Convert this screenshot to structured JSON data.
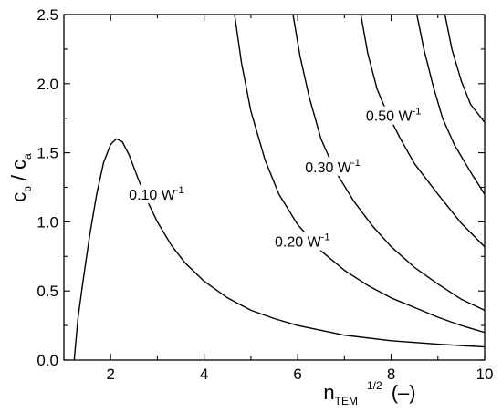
{
  "chart_data": {
    "type": "line",
    "title": "",
    "xlabel": {
      "main": "n",
      "sub": "TEM",
      "sup": "1/2",
      "tail": "(–)"
    },
    "ylabel": {
      "c1": "c",
      "c1sub": "b",
      "slash": "/",
      "c2": "c",
      "c2sub": "a"
    },
    "xlim": [
      1,
      10
    ],
    "ylim": [
      0,
      2.5
    ],
    "xticks": [
      2,
      4,
      6,
      8,
      10
    ],
    "yticks": [
      0.0,
      0.5,
      1.0,
      1.5,
      2.0,
      2.5
    ],
    "ytick_labels": [
      "0.0",
      "0.5",
      "1.0",
      "1.5",
      "2.0",
      "2.5"
    ],
    "grid": false,
    "series": [
      {
        "name": "0.10 W-1",
        "label_text": "0.10 W",
        "label_sup": "-1",
        "label_at": [
          2.98,
          1.18
        ],
        "points": [
          [
            1.22,
            0.0
          ],
          [
            1.3,
            0.3
          ],
          [
            1.4,
            0.55
          ],
          [
            1.55,
            0.9
          ],
          [
            1.7,
            1.2
          ],
          [
            1.85,
            1.43
          ],
          [
            2.0,
            1.56
          ],
          [
            2.12,
            1.6
          ],
          [
            2.25,
            1.58
          ],
          [
            2.4,
            1.48
          ],
          [
            2.6,
            1.3
          ],
          [
            2.8,
            1.14
          ],
          [
            3.0,
            1.0
          ],
          [
            3.3,
            0.83
          ],
          [
            3.6,
            0.7
          ],
          [
            4.0,
            0.57
          ],
          [
            4.5,
            0.45
          ],
          [
            5.0,
            0.36
          ],
          [
            5.5,
            0.3
          ],
          [
            6.0,
            0.25
          ],
          [
            7.0,
            0.18
          ],
          [
            8.0,
            0.14
          ],
          [
            9.0,
            0.115
          ],
          [
            10.0,
            0.095
          ]
        ]
      },
      {
        "name": "0.20 W-1",
        "label_text": "0.20 W",
        "label_sup": "-1",
        "label_at": [
          6.1,
          0.84
        ],
        "points": [
          [
            4.65,
            2.5
          ],
          [
            4.8,
            2.15
          ],
          [
            5.0,
            1.8
          ],
          [
            5.3,
            1.45
          ],
          [
            5.6,
            1.2
          ],
          [
            6.0,
            0.98
          ],
          [
            6.5,
            0.79
          ],
          [
            7.0,
            0.65
          ],
          [
            7.5,
            0.54
          ],
          [
            8.0,
            0.45
          ],
          [
            8.5,
            0.38
          ],
          [
            9.0,
            0.31
          ],
          [
            9.5,
            0.25
          ],
          [
            10.0,
            0.2
          ]
        ]
      },
      {
        "name": "0.30 W-1",
        "label_text": "0.30 W",
        "label_sup": "-1",
        "label_at": [
          6.75,
          1.38
        ],
        "points": [
          [
            5.9,
            2.5
          ],
          [
            6.05,
            2.2
          ],
          [
            6.25,
            1.9
          ],
          [
            6.5,
            1.6
          ],
          [
            6.8,
            1.37
          ],
          [
            7.2,
            1.15
          ],
          [
            7.6,
            0.97
          ],
          [
            8.0,
            0.82
          ],
          [
            8.5,
            0.67
          ],
          [
            9.0,
            0.55
          ],
          [
            9.5,
            0.44
          ],
          [
            10.0,
            0.36
          ]
        ]
      },
      {
        "name": "0.50 W-1",
        "label_text": "0.50 W",
        "label_sup": "-1",
        "label_at": [
          8.05,
          1.75
        ],
        "points": [
          [
            7.35,
            2.5
          ],
          [
            7.5,
            2.22
          ],
          [
            7.7,
            1.96
          ],
          [
            7.9,
            1.8
          ],
          [
            8.2,
            1.6
          ],
          [
            8.5,
            1.42
          ],
          [
            9.0,
            1.2
          ],
          [
            9.5,
            0.99
          ],
          [
            10.0,
            0.82
          ]
        ]
      },
      {
        "name": "contour-5",
        "points": [
          [
            8.55,
            2.5
          ],
          [
            8.7,
            2.25
          ],
          [
            8.9,
            1.98
          ],
          [
            9.1,
            1.75
          ],
          [
            9.35,
            1.56
          ],
          [
            9.7,
            1.36
          ],
          [
            10.0,
            1.2
          ]
        ]
      },
      {
        "name": "contour-6",
        "points": [
          [
            9.15,
            2.5
          ],
          [
            9.3,
            2.25
          ],
          [
            9.5,
            2.02
          ],
          [
            9.7,
            1.85
          ],
          [
            10.0,
            1.72
          ]
        ]
      }
    ]
  }
}
